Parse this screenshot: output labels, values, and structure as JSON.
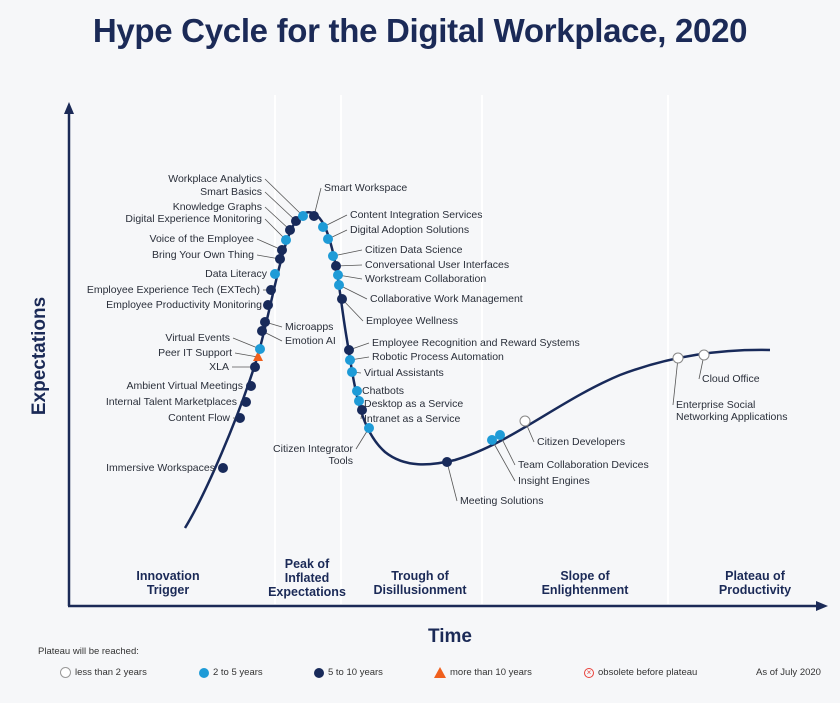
{
  "title": "Hype Cycle for the Digital Workplace, 2020",
  "chart_data": {
    "type": "scatter",
    "title": "Hype Cycle for the Digital Workplace, 2020",
    "xlabel": "Time",
    "ylabel": "Expectations",
    "phases": [
      "Innovation Trigger",
      "Peak of Inflated Expectations",
      "Trough of Disillusionment",
      "Slope of Enlightenment",
      "Plateau of Productivity"
    ],
    "phase_lines": [
      [
        "Innovation",
        " Trigger"
      ],
      [
        "Peak of",
        "Inflated",
        "Expectations"
      ],
      [
        "Trough of",
        "Disillusionment"
      ],
      [
        "Slope of",
        "Enlightenment"
      ],
      [
        "Plateau of",
        "Productivity"
      ]
    ],
    "legend_title": "Plateau will be reached:",
    "legend": [
      {
        "key": "lt2",
        "label": "less than 2 years",
        "color": "#ffffff"
      },
      {
        "key": "2to5",
        "label": "2 to 5 years",
        "color": "#1e9bd7"
      },
      {
        "key": "5to10",
        "label": "5 to 10 years",
        "color": "#182a5a"
      },
      {
        "key": "gt10",
        "label": "more than 10 years",
        "color": "#f0601e"
      },
      {
        "key": "obsolete",
        "label": "obsolete before plateau",
        "color": "#e8403a"
      }
    ],
    "as_of": "As of July 2020",
    "points": [
      {
        "name": "Immersive Workspaces",
        "cat": "5to10",
        "phase": "Innovation Trigger"
      },
      {
        "name": "Content Flow",
        "cat": "5to10",
        "phase": "Innovation Trigger"
      },
      {
        "name": "Internal Talent Marketplaces",
        "cat": "5to10",
        "phase": "Innovation Trigger"
      },
      {
        "name": "Ambient Virtual Meetings",
        "cat": "5to10",
        "phase": "Innovation Trigger"
      },
      {
        "name": "XLA",
        "cat": "5to10",
        "phase": "Innovation Trigger"
      },
      {
        "name": "Peer IT Support",
        "cat": "gt10",
        "phase": "Innovation Trigger"
      },
      {
        "name": "Virtual Events",
        "cat": "2to5",
        "phase": "Innovation Trigger"
      },
      {
        "name": "Emotion AI",
        "cat": "5to10",
        "phase": "Innovation Trigger"
      },
      {
        "name": "Microapps",
        "cat": "5to10",
        "phase": "Innovation Trigger"
      },
      {
        "name": "Employee Productivity Monitoring",
        "cat": "5to10",
        "phase": "Innovation Trigger"
      },
      {
        "name": "Employee Experience Tech (EXTech)",
        "cat": "5to10",
        "phase": "Innovation Trigger"
      },
      {
        "name": "Data Literacy",
        "cat": "2to5",
        "phase": "Peak of Inflated Expectations"
      },
      {
        "name": "Bring Your Own Thing",
        "cat": "5to10",
        "phase": "Peak of Inflated Expectations"
      },
      {
        "name": "Voice of the Employee",
        "cat": "5to10",
        "phase": "Peak of Inflated Expectations"
      },
      {
        "name": "Digital Experience Monitoring",
        "cat": "2to5",
        "phase": "Peak of Inflated Expectations"
      },
      {
        "name": "Knowledge Graphs",
        "cat": "5to10",
        "phase": "Peak of Inflated Expectations"
      },
      {
        "name": "Smart Basics",
        "cat": "5to10",
        "phase": "Peak of Inflated Expectations"
      },
      {
        "name": "Workplace Analytics",
        "cat": "2to5",
        "phase": "Peak of Inflated Expectations"
      },
      {
        "name": "Smart Workspace",
        "cat": "5to10",
        "phase": "Peak of Inflated Expectations"
      },
      {
        "name": "Content Integration Services",
        "cat": "2to5",
        "phase": "Peak of Inflated Expectations"
      },
      {
        "name": "Digital Adoption Solutions",
        "cat": "2to5",
        "phase": "Peak of Inflated Expectations"
      },
      {
        "name": "Citizen Data Science",
        "cat": "2to5",
        "phase": "Peak of Inflated Expectations"
      },
      {
        "name": "Conversational User Interfaces",
        "cat": "5to10",
        "phase": "Peak of Inflated Expectations"
      },
      {
        "name": "Workstream Collaboration",
        "cat": "2to5",
        "phase": "Peak of Inflated Expectations"
      },
      {
        "name": "Collaborative Work Management",
        "cat": "2to5",
        "phase": "Peak of Inflated Expectations"
      },
      {
        "name": "Employee Wellness",
        "cat": "5to10",
        "phase": "Trough of Disillusionment"
      },
      {
        "name": "Employee Recognition and Reward Systems",
        "cat": "5to10",
        "phase": "Trough of Disillusionment"
      },
      {
        "name": "Robotic Process Automation",
        "cat": "2to5",
        "phase": "Trough of Disillusionment"
      },
      {
        "name": "Virtual Assistants",
        "cat": "2to5",
        "phase": "Trough of Disillusionment"
      },
      {
        "name": "Chatbots",
        "cat": "2to5",
        "phase": "Trough of Disillusionment"
      },
      {
        "name": "Desktop as a Service",
        "cat": "2to5",
        "phase": "Trough of Disillusionment"
      },
      {
        "name": "Intranet as a Service",
        "cat": "5to10",
        "phase": "Trough of Disillusionment"
      },
      {
        "name": "Citizen Integrator Tools",
        "cat": "2to5",
        "phase": "Trough of Disillusionment"
      },
      {
        "name": "Meeting Solutions",
        "cat": "5to10",
        "phase": "Trough of Disillusionment"
      },
      {
        "name": "Insight Engines",
        "cat": "2to5",
        "phase": "Slope of Enlightenment"
      },
      {
        "name": "Team Collaboration Devices",
        "cat": "2to5",
        "phase": "Slope of Enlightenment"
      },
      {
        "name": "Citizen Developers",
        "cat": "lt2",
        "phase": "Slope of Enlightenment"
      },
      {
        "name": "Enterprise Social Networking Applications",
        "cat": "lt2",
        "phase": "Plateau of Productivity"
      },
      {
        "name": "Cloud Office",
        "cat": "lt2",
        "phase": "Plateau of Productivity"
      }
    ]
  }
}
